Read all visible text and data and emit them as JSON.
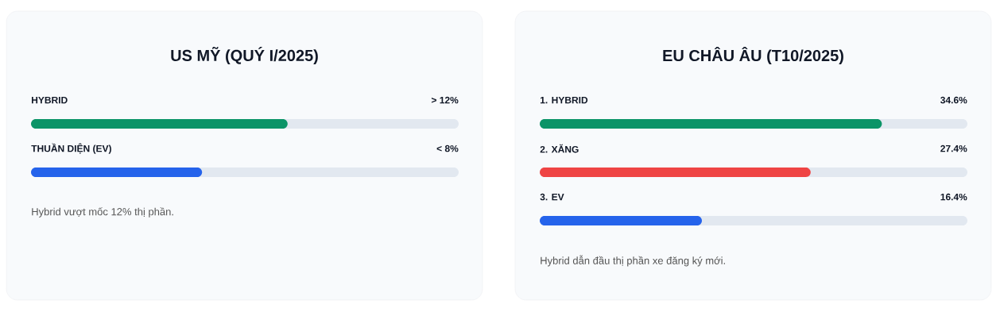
{
  "chart_data": [
    {
      "type": "bar",
      "orientation": "horizontal",
      "title": "US MỸ (QUÝ I/2025)",
      "categories": [
        "HYBRID",
        "THUẦN DIỆN (EV)"
      ],
      "values": [
        12,
        8
      ],
      "colors": [
        "#0b9467",
        "#2563eb"
      ],
      "value_labels": [
        "> 12%",
        "< 8%"
      ],
      "xlim": [
        0,
        20
      ],
      "annotations": [
        "Hybrid vượt mốc 12% thị phần."
      ]
    },
    {
      "type": "bar",
      "orientation": "horizontal",
      "title": "EU CHÂU ÂU (T10/2025)",
      "categories": [
        "1. HYBRID",
        "2. XĂNG",
        "3. EV"
      ],
      "values": [
        34.6,
        27.4,
        16.4
      ],
      "colors": [
        "#0b9467",
        "#ef4444",
        "#2563eb"
      ],
      "value_labels": [
        "34.6%",
        "27.4%",
        "16.4%"
      ],
      "xlim": [
        0,
        43.25
      ],
      "annotations": [
        "Hybrid dẫn đầu thị phần xe đăng ký mới."
      ]
    }
  ]
}
